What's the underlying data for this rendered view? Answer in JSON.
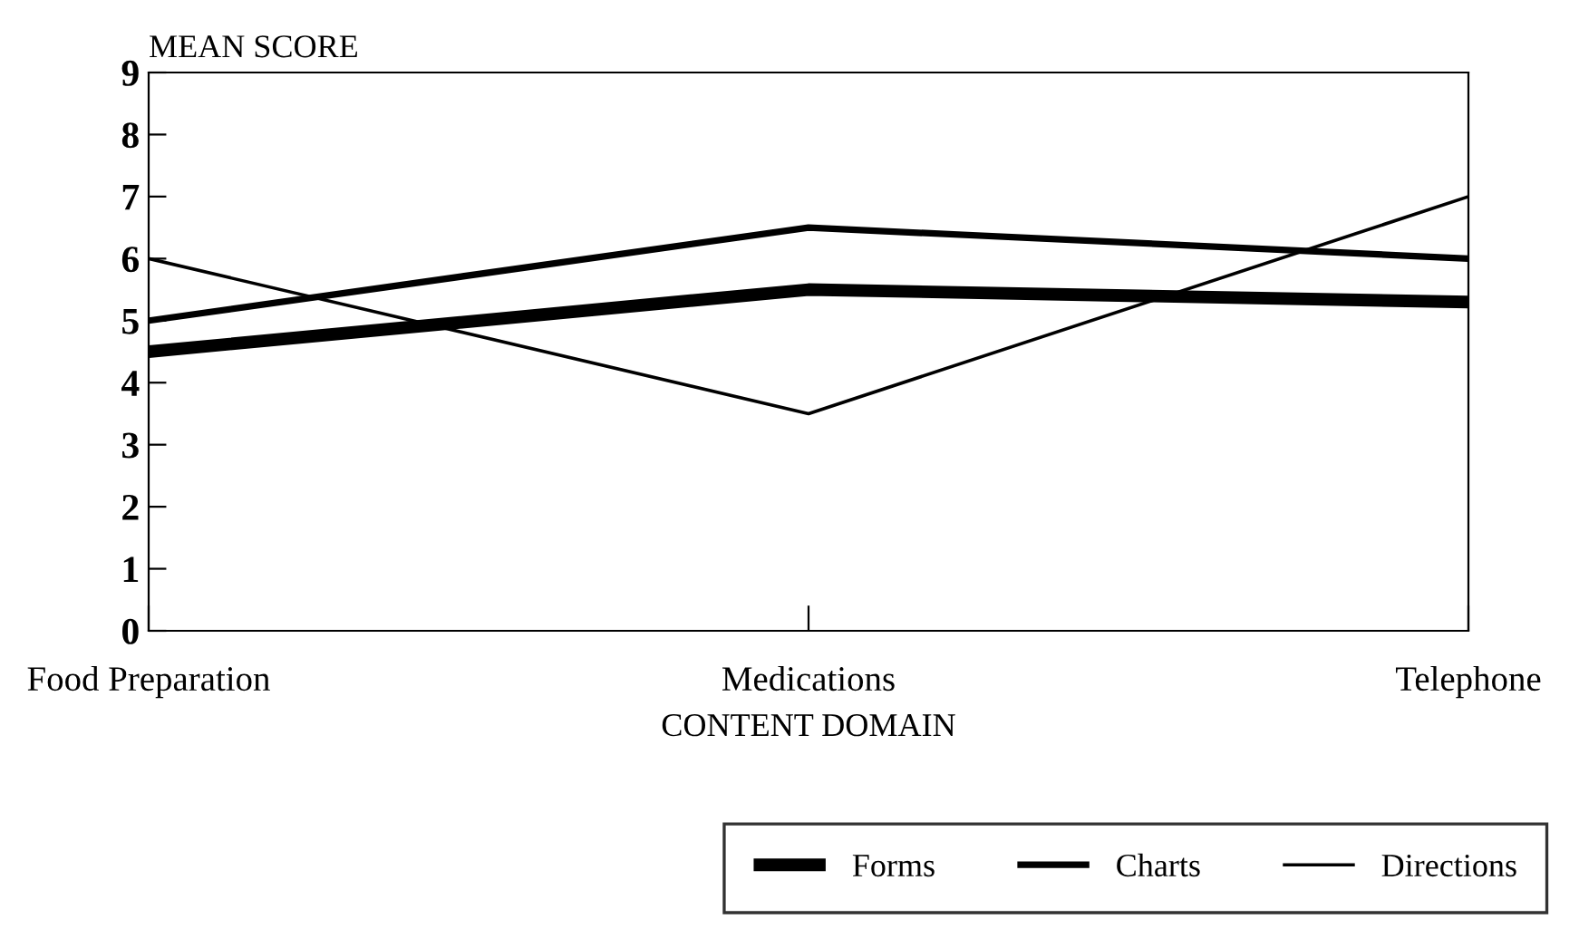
{
  "chart_data": {
    "type": "line",
    "xlabel": "CONTENT DOMAIN",
    "ylabel": "MEAN SCORE",
    "categories": [
      "Food Preparation",
      "Medications",
      "Telephone"
    ],
    "series": [
      {
        "name": "Forms",
        "color": "#000000",
        "values": [
          4.5,
          5.5,
          5.3
        ]
      },
      {
        "name": "Charts",
        "color": "#000000",
        "values": [
          5.0,
          6.5,
          6.0
        ]
      },
      {
        "name": "Directions",
        "color": "#000000",
        "values": [
          6.0,
          3.5,
          7.0
        ]
      }
    ],
    "ylim": [
      0,
      9
    ],
    "yticks": [
      0,
      1,
      2,
      3,
      4,
      5,
      6,
      7,
      8,
      9
    ],
    "grid": false,
    "legend": "bottom right",
    "marker": "none",
    "line_style": "solid"
  }
}
